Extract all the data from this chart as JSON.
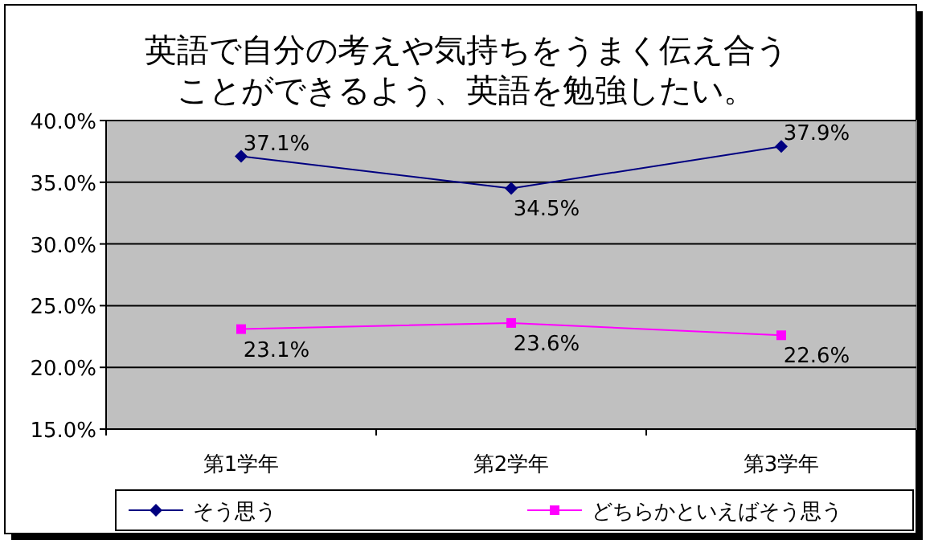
{
  "chart_data": {
    "type": "line",
    "title": "英語で自分の考えや気持ちをうまく伝え合うことができるよう、英語を勉強したい。",
    "categories": [
      "第1学年",
      "第2学年",
      "第3学年"
    ],
    "series": [
      {
        "name": "そう思う",
        "color": "#000080",
        "marker": "diamond",
        "values": [
          37.1,
          34.5,
          37.9
        ],
        "value_labels": [
          "37.1%",
          "34.5%",
          "37.9%"
        ]
      },
      {
        "name": "どちらかといえばそう思う",
        "color": "#ff00ff",
        "marker": "square",
        "values": [
          23.1,
          23.6,
          22.6
        ],
        "value_labels": [
          "23.1%",
          "23.6%",
          "22.6%"
        ]
      }
    ],
    "ylim": [
      15,
      40
    ],
    "yticks": [
      {
        "value": 15,
        "label": "15.0%"
      },
      {
        "value": 20,
        "label": "20.0%"
      },
      {
        "value": 25,
        "label": "25.0%"
      },
      {
        "value": 30,
        "label": "30.0%"
      },
      {
        "value": 35,
        "label": "35.0%"
      },
      {
        "value": 40,
        "label": "40.0%"
      }
    ],
    "grid": "y",
    "legend": "bottom",
    "line_style": "solid"
  }
}
